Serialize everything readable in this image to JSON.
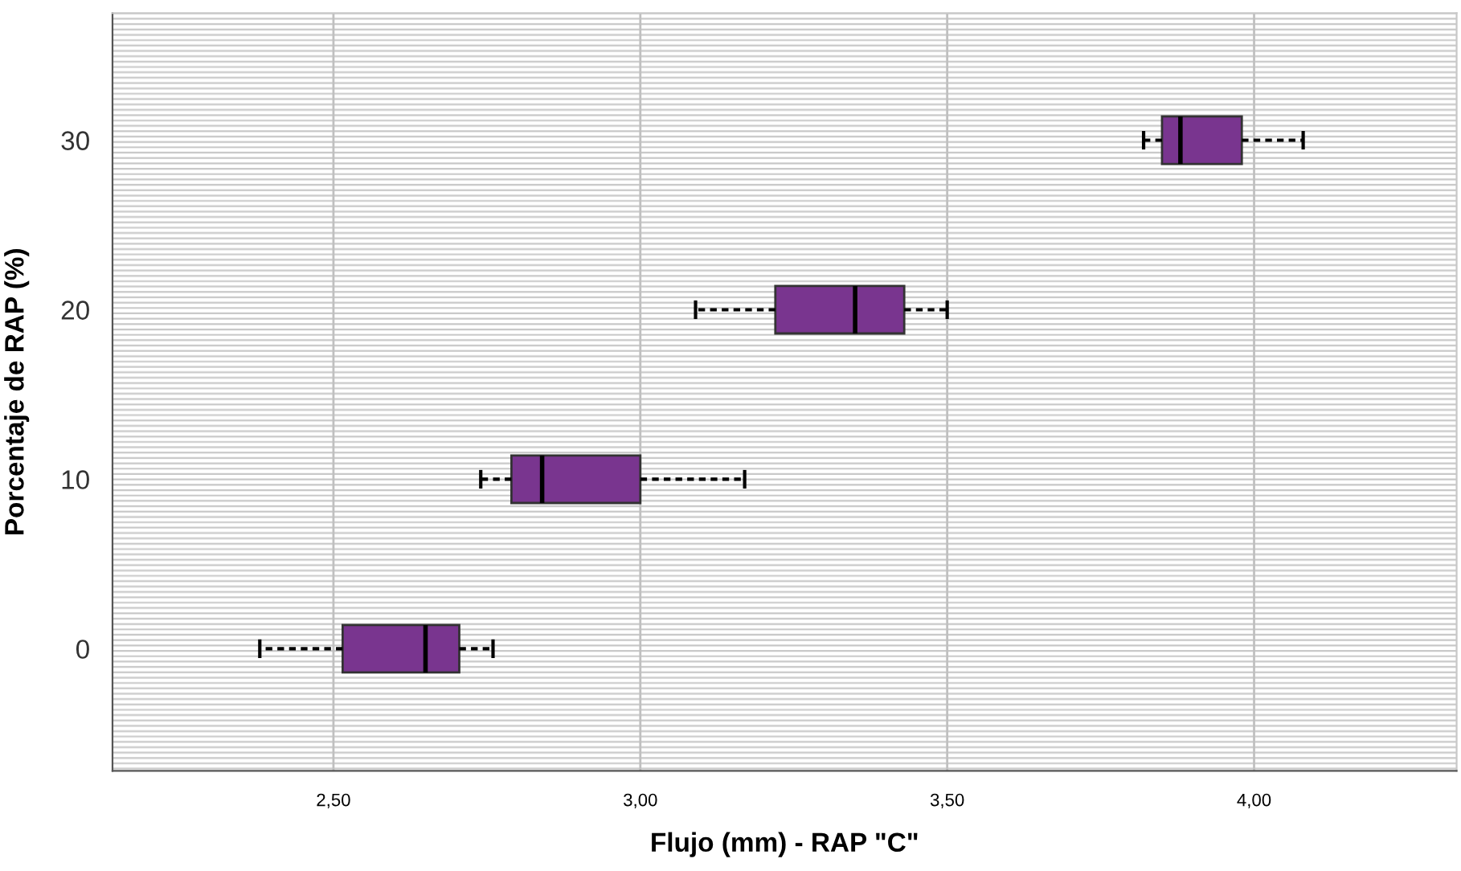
{
  "chart_data": {
    "type": "box",
    "orientation": "horizontal",
    "xlabel": "Flujo (mm) - RAP \"C\"",
    "ylabel": "Porcentaje de RAP (%)",
    "categories": [
      "30",
      "20",
      "10",
      "0"
    ],
    "color": "#79358f",
    "boxes": [
      {
        "low": 3.82,
        "q1": 3.85,
        "median": 3.88,
        "q3": 3.98,
        "high": 4.08
      },
      {
        "low": 3.09,
        "q1": 3.22,
        "median": 3.35,
        "q3": 3.43,
        "high": 3.5
      },
      {
        "low": 2.74,
        "q1": 2.79,
        "median": 2.84,
        "q3": 3.0,
        "high": 3.17
      },
      {
        "low": 2.38,
        "q1": 2.515,
        "median": 2.65,
        "q3": 2.705,
        "high": 2.76
      }
    ],
    "xlim": [
      2.14,
      4.33
    ],
    "xticks": [
      {
        "value": 2.5,
        "label": "2,50"
      },
      {
        "value": 3.0,
        "label": "3,00"
      },
      {
        "value": 3.5,
        "label": "3,50"
      },
      {
        "value": 4.0,
        "label": "4,00"
      }
    ],
    "grid": "x",
    "line_style": "dashed",
    "legend": false
  }
}
